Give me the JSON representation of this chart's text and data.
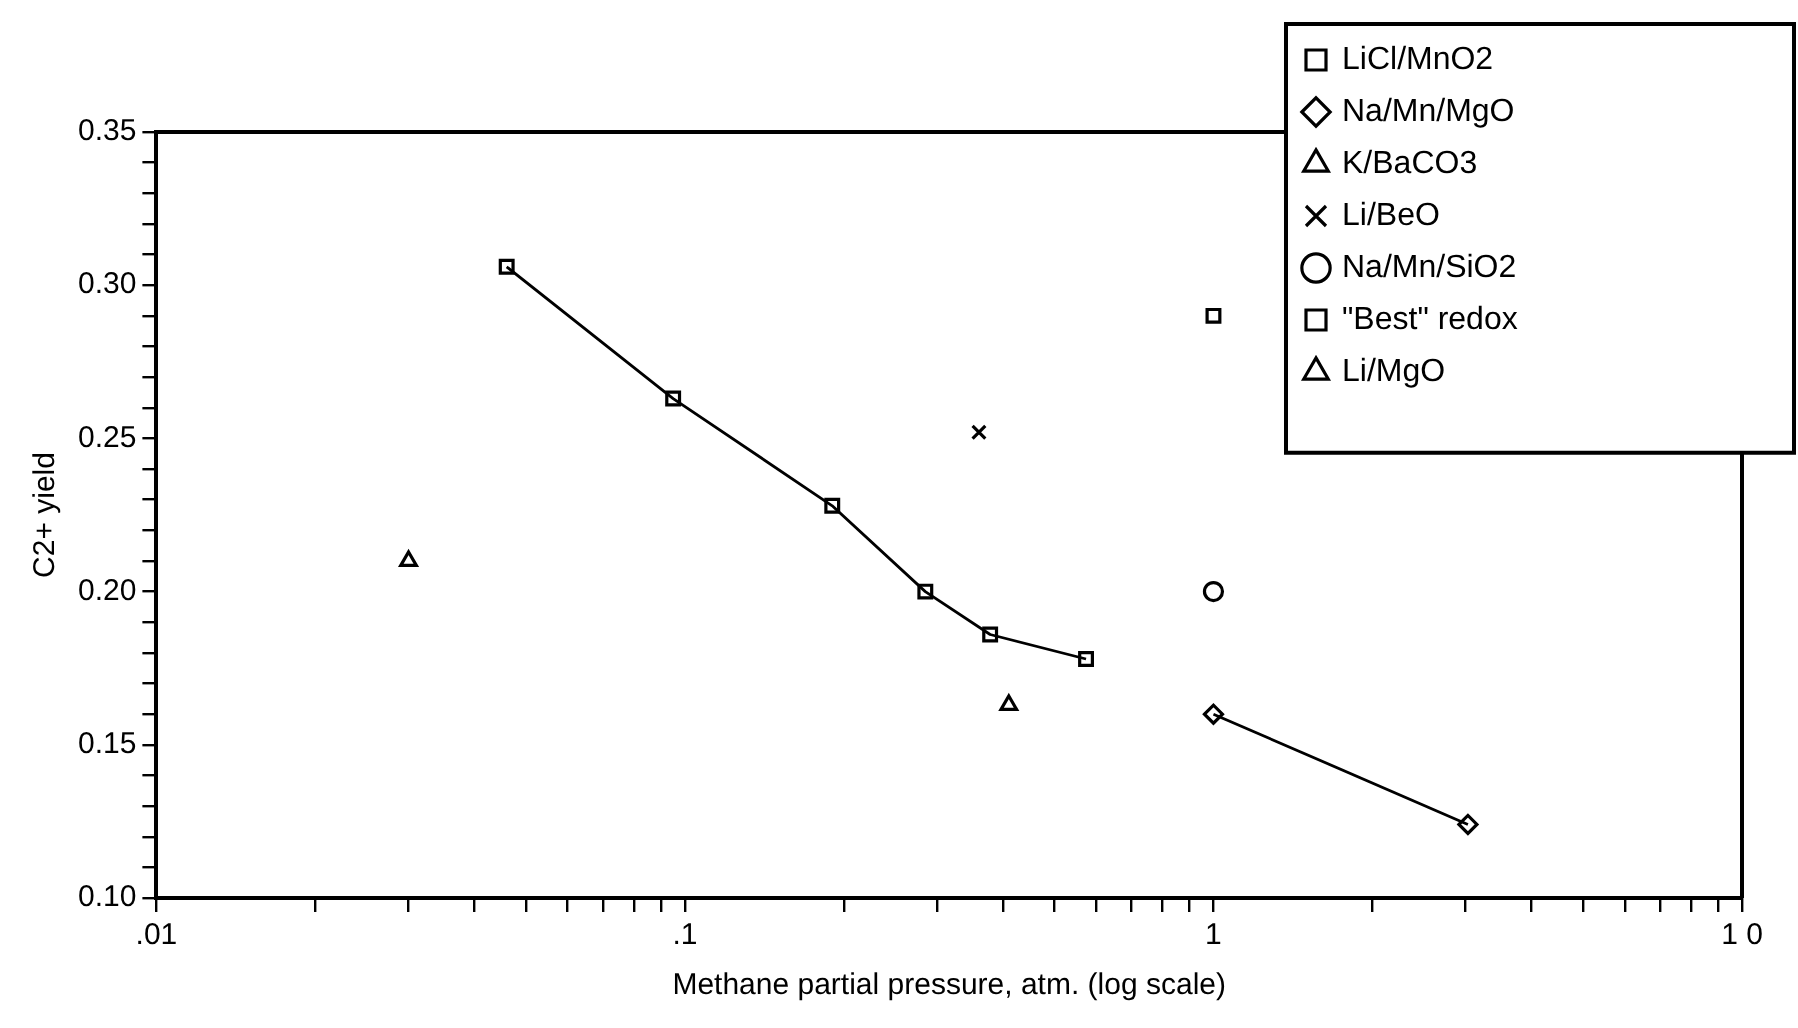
{
  "chart_data": {
    "type": "scatter",
    "xlabel": "Methane partial pressure, atm. (log scale)",
    "ylabel": "C2+ yield",
    "log": "x",
    "grid": false,
    "legend": "top right",
    "xlim": [
      0.01,
      10
    ],
    "xticks": [
      {
        "value": 0.01,
        "label": ".01"
      },
      {
        "value": 0.02,
        "label": null
      },
      {
        "value": 0.03,
        "label": null
      },
      {
        "value": 0.04,
        "label": null
      },
      {
        "value": 0.05,
        "label": null
      },
      {
        "value": 0.06,
        "label": null
      },
      {
        "value": 0.07,
        "label": null
      },
      {
        "value": 0.08,
        "label": null
      },
      {
        "value": 0.09,
        "label": null
      },
      {
        "value": 0.1,
        "label": ".1"
      },
      {
        "value": 0.2,
        "label": null
      },
      {
        "value": 0.3,
        "label": null
      },
      {
        "value": 0.4,
        "label": null
      },
      {
        "value": 0.5,
        "label": null
      },
      {
        "value": 0.6,
        "label": null
      },
      {
        "value": 0.7,
        "label": null
      },
      {
        "value": 0.8,
        "label": null
      },
      {
        "value": 0.9,
        "label": null
      },
      {
        "value": 1,
        "label": "1"
      },
      {
        "value": 2,
        "label": null
      },
      {
        "value": 3,
        "label": null
      },
      {
        "value": 4,
        "label": null
      },
      {
        "value": 5,
        "label": null
      },
      {
        "value": 6,
        "label": null
      },
      {
        "value": 7,
        "label": null
      },
      {
        "value": 8,
        "label": null
      },
      {
        "value": 9,
        "label": null
      },
      {
        "value": 10,
        "label": "1 0"
      }
    ],
    "ylim": [
      0.1,
      0.35
    ],
    "yticks": [
      {
        "value": 0.1,
        "label": "0.10"
      },
      {
        "value": 0.11,
        "label": null
      },
      {
        "value": 0.12,
        "label": null
      },
      {
        "value": 0.13,
        "label": null
      },
      {
        "value": 0.14,
        "label": null
      },
      {
        "value": 0.15,
        "label": "0.15"
      },
      {
        "value": 0.16,
        "label": null
      },
      {
        "value": 0.17,
        "label": null
      },
      {
        "value": 0.18,
        "label": null
      },
      {
        "value": 0.19,
        "label": null
      },
      {
        "value": 0.2,
        "label": "0.20"
      },
      {
        "value": 0.21,
        "label": null
      },
      {
        "value": 0.22,
        "label": null
      },
      {
        "value": 0.23,
        "label": null
      },
      {
        "value": 0.24,
        "label": null
      },
      {
        "value": 0.25,
        "label": "0.25"
      },
      {
        "value": 0.26,
        "label": null
      },
      {
        "value": 0.27,
        "label": null
      },
      {
        "value": 0.28,
        "label": null
      },
      {
        "value": 0.29,
        "label": null
      },
      {
        "value": 0.3,
        "label": "0.30"
      },
      {
        "value": 0.31,
        "label": null
      },
      {
        "value": 0.32,
        "label": null
      },
      {
        "value": 0.33,
        "label": null
      },
      {
        "value": 0.34,
        "label": null
      },
      {
        "value": 0.35,
        "label": "0.35"
      }
    ],
    "series": [
      {
        "name": "LiCl/MnO2",
        "type": "line",
        "marker": "square",
        "line_style": "solid",
        "color": "#000000",
        "x": [
          0.046,
          0.095,
          0.19,
          0.285,
          0.378,
          0.574
        ],
        "values": [
          0.306,
          0.263,
          0.228,
          0.2,
          0.186,
          0.178
        ]
      },
      {
        "name": "Na/Mn/MgO",
        "type": "line",
        "marker": "diamond",
        "line_style": "solid",
        "color": "#000000",
        "x": [
          1,
          3.03
        ],
        "values": [
          0.16,
          0.124
        ]
      },
      {
        "name": "K/BaCO3",
        "marker": "triangle",
        "color": "#000000",
        "x": [
          0.03
        ],
        "values": [
          0.21
        ]
      },
      {
        "name": "Li/BeO",
        "marker": "cross",
        "color": "#000000",
        "x": [
          0.36
        ],
        "values": [
          0.252
        ]
      },
      {
        "name": "Na/Mn/SiO2",
        "marker": "circle",
        "color": "#000000",
        "x": [
          1
        ],
        "values": [
          0.2
        ]
      },
      {
        "name": "\"Best\" redox",
        "marker": "square",
        "color": "#000000",
        "x": [
          1
        ],
        "values": [
          0.29
        ]
      },
      {
        "name": "Li/MgO",
        "marker": "triangle",
        "color": "#000000",
        "x": [
          0.41
        ],
        "values": [
          0.163
        ]
      }
    ]
  }
}
